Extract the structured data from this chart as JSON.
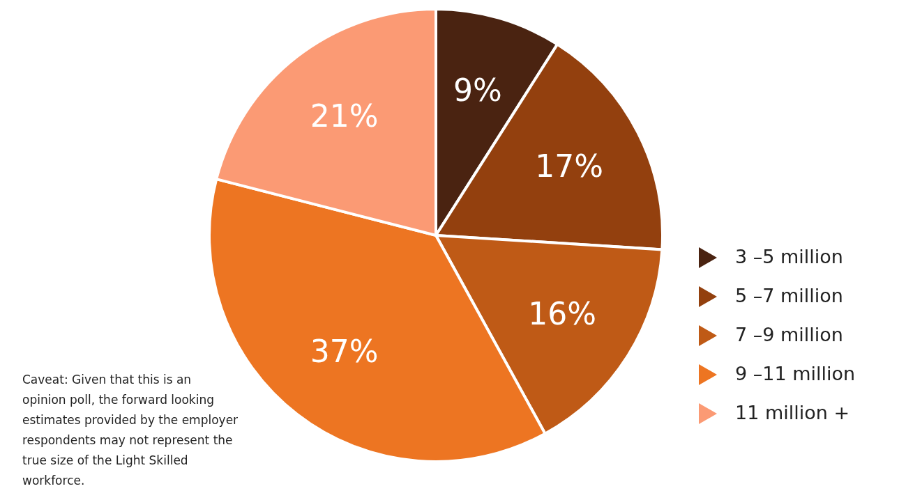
{
  "chart_data": {
    "type": "pie",
    "categories": [
      "3 –5 million",
      "5 –7 million",
      "7 –9 million",
      "9 –11 million",
      "11 million +"
    ],
    "values": [
      9,
      17,
      16,
      37,
      21
    ],
    "colors": [
      "#4a2311",
      "#93400e",
      "#bf5a16",
      "#ed7522",
      "#fb9a74"
    ],
    "value_labels": [
      "9%",
      "17%",
      "16%",
      "37%",
      "21%"
    ],
    "legend": "right",
    "annotations": [
      "Caveat: Given that this is an opinion poll, the forward looking estimates provided by the employer respondents may not represent the true size of the Light Skilled workforce."
    ]
  }
}
